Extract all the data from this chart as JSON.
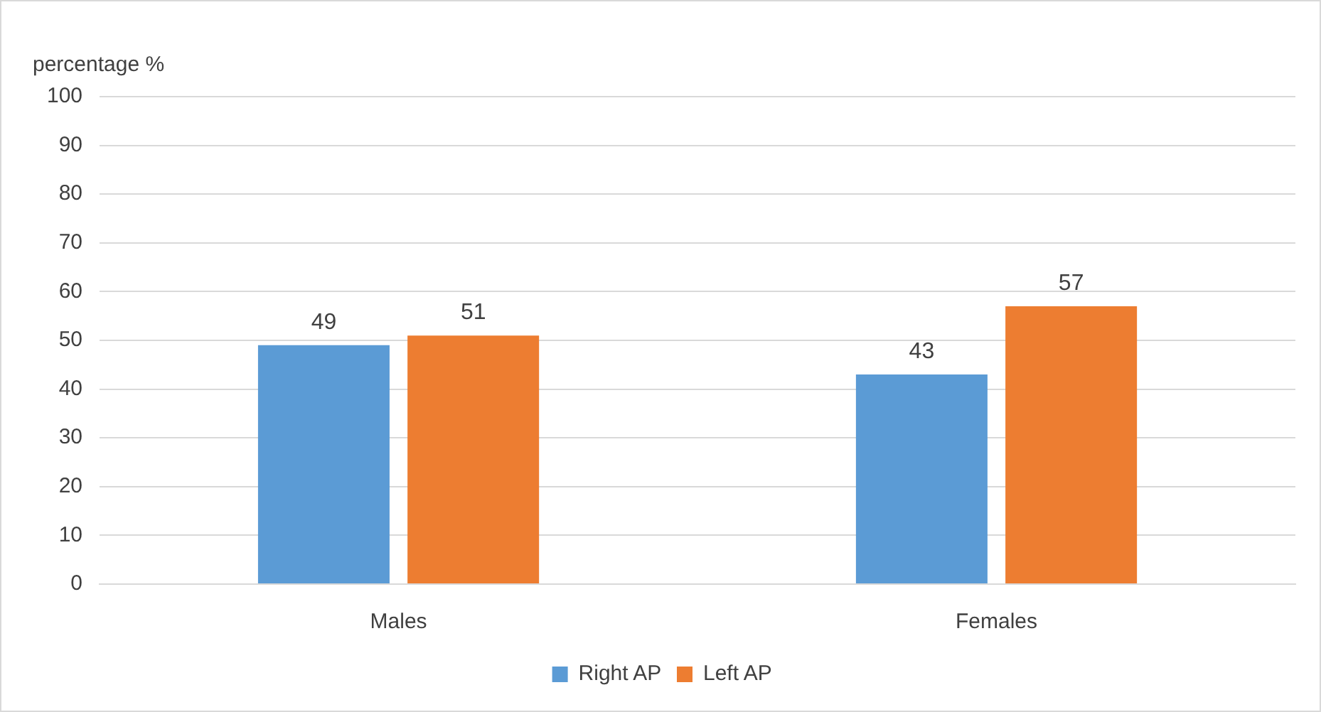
{
  "chart_data": {
    "type": "bar",
    "ylabel": "percentage %",
    "categories": [
      "Males",
      "Females"
    ],
    "series": [
      {
        "name": "Right AP",
        "color": "#5b9bd5",
        "values": [
          49,
          43
        ]
      },
      {
        "name": "Left AP",
        "color": "#ed7d31",
        "values": [
          51,
          57
        ]
      }
    ],
    "ylim": [
      0,
      100
    ],
    "yticks": [
      0,
      10,
      20,
      30,
      40,
      50,
      60,
      70,
      80,
      90,
      100
    ],
    "grid": "y",
    "legend": "bottom",
    "data_labels": true
  }
}
